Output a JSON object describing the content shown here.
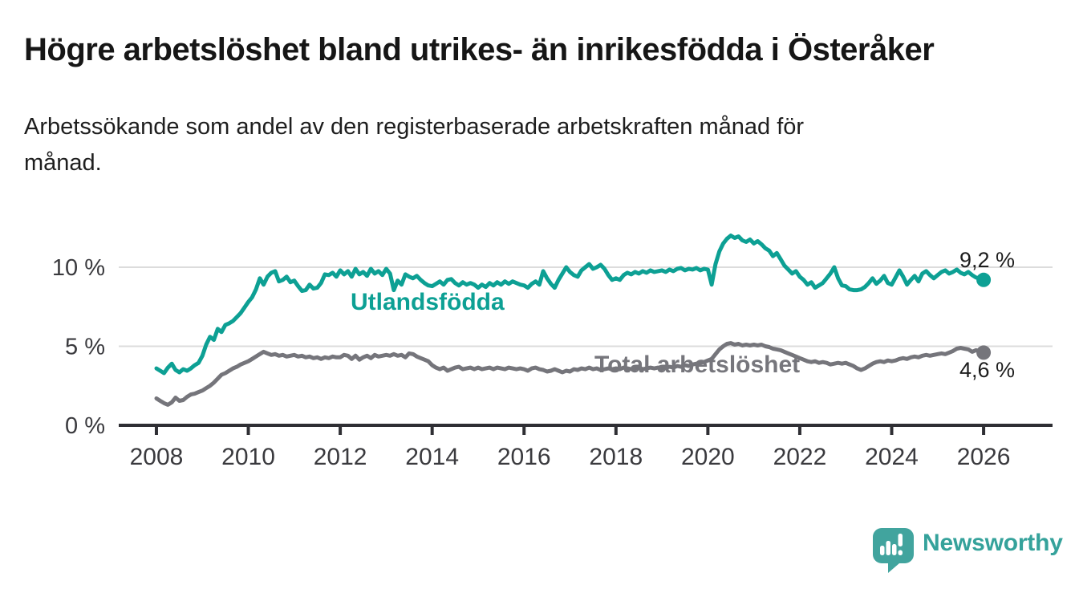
{
  "chart_data": {
    "type": "line",
    "title": "Högre arbetslöshet bland utrikes- än inrikesfödda i Österåker",
    "subtitle": "Arbetssökande som andel av den registerbaserade arbetskraften månad för månad.",
    "subtitle_lines": [
      "Arbetssökande som andel av den registerbaserade arbetskraften månad för",
      "månad."
    ],
    "unit": "%",
    "frequency": "monthly",
    "legend_position": "inline-labels",
    "grid": true,
    "style": {
      "grid_color": "#dcdcdc",
      "axis_color": "#2f2f34",
      "tick_label_color": "#3a3a3e",
      "background": "#ffffff"
    },
    "x_axis": {
      "min": 2007.18,
      "max": 2027.5,
      "ticks": [
        {
          "year": 2008,
          "label": "2008"
        },
        {
          "year": 2010,
          "label": "2010"
        },
        {
          "year": 2012,
          "label": "2012"
        },
        {
          "year": 2014,
          "label": "2014"
        },
        {
          "year": 2016,
          "label": "2016"
        },
        {
          "year": 2018,
          "label": "2018"
        },
        {
          "year": 2020,
          "label": "2020"
        },
        {
          "year": 2022,
          "label": "2022"
        },
        {
          "year": 2024,
          "label": "2024"
        },
        {
          "year": 2026,
          "label": "2026"
        }
      ]
    },
    "y_axis": {
      "min": 0,
      "max": 12.69,
      "ticks": [
        {
          "value": 0,
          "label": "0 %"
        },
        {
          "value": 5,
          "label": "5 %"
        },
        {
          "value": 10,
          "label": "10 %"
        }
      ]
    },
    "series": [
      {
        "name": "Utlandsfödda",
        "color": "#0da094",
        "start_year": 2008,
        "end_label": "9,2 %",
        "last_value": 9.2,
        "end_dot": true,
        "values": [
          3.6,
          3.45,
          3.3,
          3.65,
          3.9,
          3.5,
          3.35,
          3.55,
          3.45,
          3.6,
          3.8,
          3.95,
          4.4,
          5.1,
          5.6,
          5.4,
          6.1,
          5.9,
          6.35,
          6.45,
          6.6,
          6.85,
          7.1,
          7.45,
          7.8,
          8.1,
          8.6,
          9.3,
          8.9,
          9.4,
          9.65,
          9.75,
          9.1,
          9.2,
          9.4,
          9.05,
          9.15,
          8.8,
          8.5,
          8.55,
          8.9,
          8.65,
          8.7,
          9.0,
          9.55,
          9.5,
          9.65,
          9.4,
          9.8,
          9.55,
          9.75,
          9.4,
          9.9,
          9.55,
          9.7,
          9.45,
          9.9,
          9.6,
          9.75,
          9.5,
          9.9,
          9.6,
          8.55,
          9.15,
          8.9,
          9.55,
          9.4,
          9.3,
          9.45,
          9.2,
          9.0,
          8.85,
          8.8,
          8.95,
          9.1,
          8.9,
          9.2,
          9.25,
          9.0,
          8.85,
          9.05,
          8.9,
          9.0,
          8.9,
          8.7,
          8.9,
          8.75,
          9.0,
          8.85,
          9.05,
          8.9,
          9.1,
          8.95,
          9.1,
          9.0,
          8.9,
          8.85,
          8.7,
          8.95,
          9.1,
          8.9,
          9.75,
          9.3,
          8.95,
          8.7,
          9.2,
          9.6,
          10.0,
          9.7,
          9.5,
          9.4,
          9.8,
          10.0,
          10.2,
          9.9,
          10.0,
          10.15,
          9.9,
          9.5,
          9.2,
          9.3,
          9.2,
          9.5,
          9.65,
          9.55,
          9.7,
          9.6,
          9.75,
          9.65,
          9.8,
          9.7,
          9.75,
          9.8,
          9.7,
          9.85,
          9.75,
          9.9,
          9.95,
          9.8,
          9.9,
          9.85,
          9.95,
          9.8,
          9.9,
          9.85,
          8.9,
          10.2,
          11.0,
          11.5,
          11.8,
          12.0,
          11.85,
          11.95,
          11.7,
          11.6,
          11.75,
          11.5,
          11.65,
          11.45,
          11.2,
          11.05,
          10.7,
          10.9,
          10.5,
          10.1,
          9.85,
          9.6,
          9.75,
          9.4,
          9.2,
          8.9,
          9.05,
          8.7,
          8.85,
          9.0,
          9.3,
          9.6,
          10.0,
          9.3,
          8.85,
          8.8,
          8.6,
          8.55,
          8.55,
          8.6,
          8.75,
          9.0,
          9.3,
          8.95,
          9.15,
          9.45,
          9.0,
          8.9,
          9.35,
          9.8,
          9.4,
          8.9,
          9.2,
          9.45,
          9.1,
          9.6,
          9.75,
          9.5,
          9.3,
          9.5,
          9.7,
          9.8,
          9.6,
          9.7,
          9.85,
          9.65,
          9.55,
          9.7,
          9.5,
          9.35,
          9.3,
          9.2
        ]
      },
      {
        "name": "Total arbetslöshet",
        "color": "#75757b",
        "start_year": 2008,
        "end_label": "4,6 %",
        "last_value": 4.6,
        "end_dot": true,
        "values": [
          1.7,
          1.55,
          1.4,
          1.3,
          1.45,
          1.75,
          1.55,
          1.6,
          1.8,
          1.95,
          2.0,
          2.1,
          2.2,
          2.35,
          2.5,
          2.7,
          2.95,
          3.2,
          3.3,
          3.45,
          3.6,
          3.7,
          3.85,
          3.95,
          4.05,
          4.2,
          4.35,
          4.5,
          4.65,
          4.55,
          4.45,
          4.5,
          4.4,
          4.45,
          4.35,
          4.4,
          4.45,
          4.35,
          4.4,
          4.3,
          4.35,
          4.25,
          4.3,
          4.2,
          4.3,
          4.25,
          4.35,
          4.3,
          4.3,
          4.45,
          4.4,
          4.2,
          4.4,
          4.15,
          4.3,
          4.4,
          4.25,
          4.45,
          4.35,
          4.4,
          4.45,
          4.4,
          4.5,
          4.4,
          4.45,
          4.3,
          4.55,
          4.5,
          4.35,
          4.25,
          4.15,
          4.05,
          3.8,
          3.65,
          3.55,
          3.65,
          3.45,
          3.55,
          3.65,
          3.7,
          3.55,
          3.6,
          3.65,
          3.55,
          3.65,
          3.55,
          3.6,
          3.65,
          3.55,
          3.65,
          3.6,
          3.55,
          3.65,
          3.6,
          3.55,
          3.6,
          3.55,
          3.45,
          3.6,
          3.65,
          3.55,
          3.5,
          3.4,
          3.45,
          3.55,
          3.45,
          3.35,
          3.45,
          3.4,
          3.55,
          3.5,
          3.6,
          3.55,
          3.65,
          3.55,
          3.6,
          3.5,
          3.55,
          3.6,
          3.55,
          3.6,
          3.55,
          3.65,
          3.6,
          3.55,
          3.6,
          3.65,
          3.55,
          3.6,
          3.65,
          3.6,
          3.65,
          3.6,
          3.65,
          3.7,
          3.65,
          3.75,
          3.7,
          3.8,
          3.75,
          3.85,
          3.9,
          3.95,
          4.0,
          4.1,
          4.2,
          4.5,
          4.8,
          5.0,
          5.15,
          5.2,
          5.1,
          5.15,
          5.05,
          5.1,
          5.05,
          5.1,
          5.05,
          5.1,
          5.0,
          4.95,
          4.85,
          4.8,
          4.75,
          4.65,
          4.55,
          4.45,
          4.35,
          4.25,
          4.15,
          4.05,
          4.0,
          4.05,
          3.95,
          4.0,
          3.95,
          3.85,
          3.9,
          3.95,
          3.9,
          3.95,
          3.85,
          3.75,
          3.6,
          3.5,
          3.6,
          3.75,
          3.9,
          4.0,
          4.05,
          4.0,
          4.1,
          4.05,
          4.1,
          4.2,
          4.25,
          4.2,
          4.3,
          4.35,
          4.3,
          4.4,
          4.45,
          4.4,
          4.45,
          4.5,
          4.55,
          4.5,
          4.6,
          4.7,
          4.85,
          4.9,
          4.85,
          4.8,
          4.65,
          4.75,
          4.7,
          4.6
        ]
      }
    ]
  },
  "footer": {
    "brand": "Newsworthy",
    "brand_color": "#35a29b",
    "logo_color": "#41a49e"
  }
}
